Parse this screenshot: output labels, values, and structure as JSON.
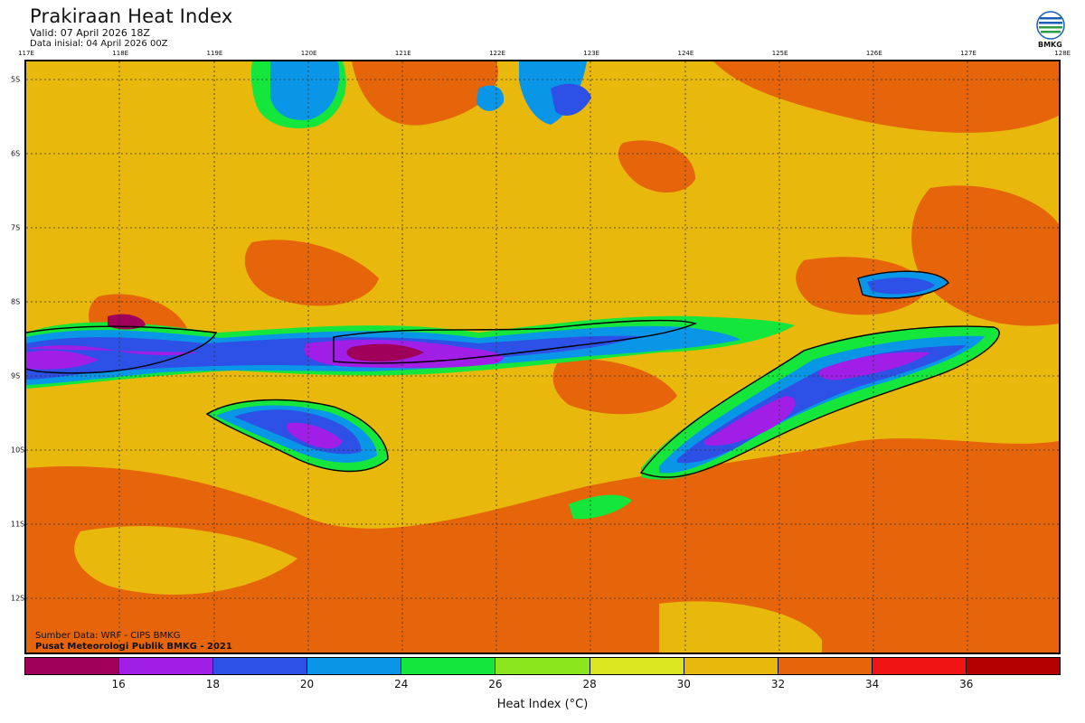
{
  "header": {
    "title": "Prakiraan Heat Index",
    "valid": "Valid: 07 April 2026 18Z",
    "init": "Data inisial: 04 April 2026 00Z"
  },
  "logo": {
    "icon": "bmkg-logo-icon",
    "text": "BMKG"
  },
  "map": {
    "lon_labels": [
      "117E",
      "118E",
      "119E",
      "120E",
      "121E",
      "122E",
      "123E",
      "124E",
      "125E",
      "126E",
      "127E",
      "128E"
    ],
    "lat_labels": [
      "5S",
      "6S",
      "7S",
      "8S",
      "9S",
      "10S",
      "11S",
      "12S"
    ],
    "base_color": "#e8b80c",
    "credits": [
      "Sumber Data: WRF - CIPS BMKG",
      "Pusat Meteorologi Publik BMKG - 2021"
    ]
  },
  "legend": {
    "colors": [
      "#a0005a",
      "#a01ee6",
      "#2d50e6",
      "#0a96e6",
      "#14e63c",
      "#8ce61e",
      "#dce61e",
      "#e8b80c",
      "#e6640a",
      "#f01414",
      "#b40000"
    ],
    "ticks": [
      "16",
      "18",
      "20",
      "24",
      "26",
      "28",
      "30",
      "32",
      "34",
      "36"
    ],
    "axis_title": "Heat Index (°C)"
  }
}
